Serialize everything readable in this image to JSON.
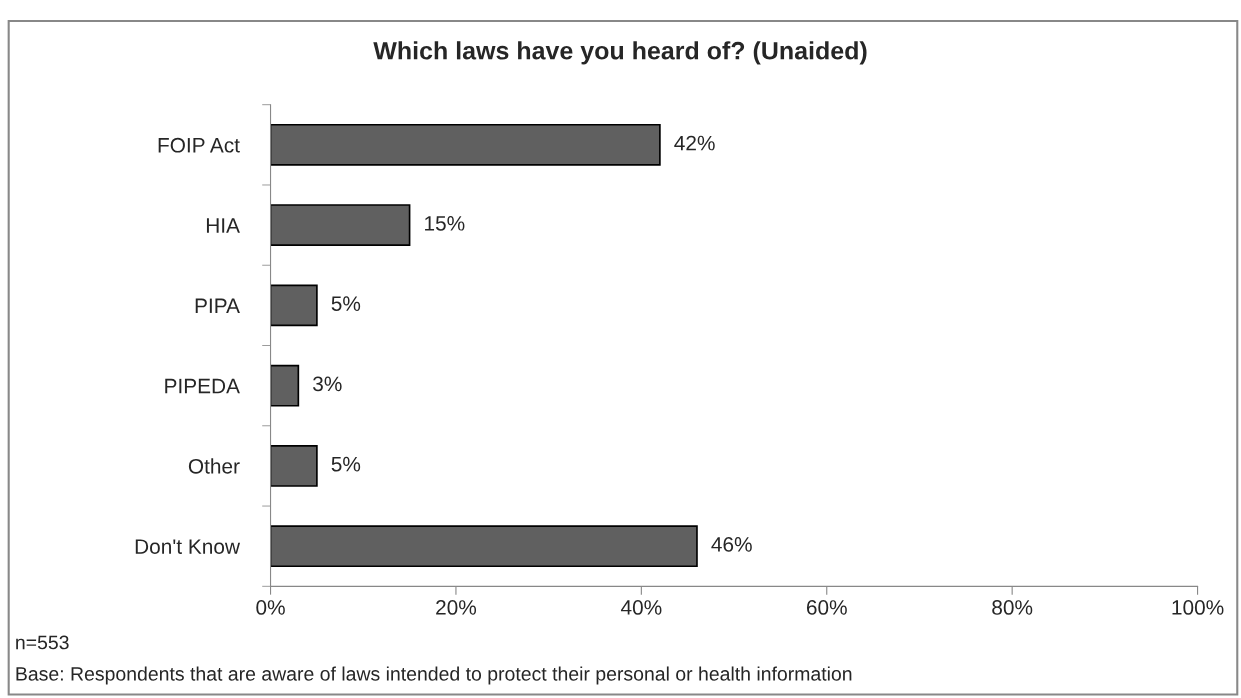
{
  "chart_data": {
    "type": "bar",
    "orientation": "horizontal",
    "title": "Which laws have you heard of? (Unaided)",
    "categories": [
      "FOIP Act",
      "HIA",
      "PIPA",
      "PIPEDA",
      "Other",
      "Don't Know"
    ],
    "values": [
      42,
      15,
      5,
      3,
      5,
      46
    ],
    "color": "#606060",
    "value_labels": [
      "42%",
      "15%",
      "5%",
      "3%",
      "5%",
      "46%"
    ],
    "xlim": [
      0,
      100
    ],
    "xticks": [
      {
        "value": 0,
        "label": "0%"
      },
      {
        "value": 20,
        "label": "20%"
      },
      {
        "value": 40,
        "label": "40%"
      },
      {
        "value": 60,
        "label": "60%"
      },
      {
        "value": 80,
        "label": "80%"
      },
      {
        "value": 100,
        "label": "100%"
      }
    ],
    "grid": false,
    "legend": false,
    "annotations": [
      "n=553",
      "Base: Respondents that are aware of laws intended to protect their personal or health information"
    ]
  }
}
